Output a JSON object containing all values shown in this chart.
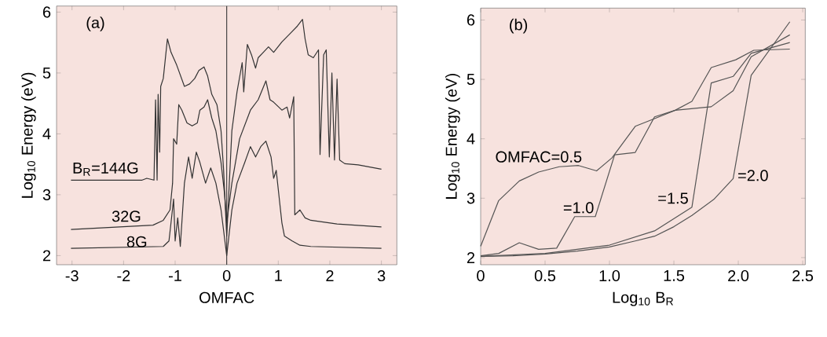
{
  "chart_data": [
    {
      "type": "line",
      "title": "(a)",
      "xlabel": "OMFAC",
      "ylabel": "Log$_{10}$ Energy (eV)",
      "xlim": [
        -3.3,
        3.3
      ],
      "ylim": [
        1.85,
        6.1
      ],
      "xticks": [
        -3,
        -2,
        -1,
        0,
        1,
        2,
        3
      ],
      "yticks": [
        2,
        3,
        4,
        5,
        6
      ],
      "legend": false,
      "grid": false,
      "marker": "none",
      "ref_lines": [
        {
          "axis": "x",
          "value": 0,
          "color": "#333333"
        }
      ],
      "series": [
        {
          "name": "B$_{R}$=144G",
          "color": "#333333",
          "x": [
            -3.02,
            -1.64,
            -1.55,
            -1.41,
            -1.38,
            -1.35,
            -1.33,
            -1.3,
            -1.28,
            -1.23,
            -1.15,
            -1.08,
            -0.97,
            -0.82,
            -0.72,
            -0.62,
            -0.54,
            -0.44,
            -0.37,
            -0.29,
            -0.19,
            -0.11,
            -0.06,
            0.0,
            0.1,
            0.2,
            0.3,
            0.33,
            0.4,
            0.48,
            0.56,
            0.61,
            0.71,
            0.81,
            0.91,
            1.07,
            1.22,
            1.37,
            1.47,
            1.52,
            1.58,
            1.68,
            1.78,
            1.81,
            1.88,
            1.93,
            1.99,
            2.04,
            2.09,
            2.14,
            2.19,
            2.29,
            2.55,
            3.0
          ],
          "values": [
            3.24,
            3.24,
            3.27,
            3.24,
            4.56,
            3.24,
            4.65,
            3.7,
            4.78,
            4.91,
            5.56,
            5.34,
            5.13,
            4.78,
            4.82,
            4.91,
            5.04,
            5.1,
            4.95,
            4.65,
            4.48,
            4.05,
            3.4,
            2.32,
            4.05,
            4.69,
            5.17,
            4.69,
            5.47,
            5.3,
            5.08,
            5.25,
            5.34,
            5.43,
            5.34,
            5.51,
            5.64,
            5.77,
            5.88,
            5.56,
            5.3,
            5.25,
            5.38,
            3.66,
            5.3,
            5.38,
            3.62,
            5.0,
            3.57,
            4.9,
            3.57,
            3.51,
            3.49,
            3.42
          ]
        },
        {
          "name": "32G",
          "color": "#333333",
          "x": [
            -3.02,
            -1.43,
            -1.23,
            -1.1,
            -1.05,
            -1.03,
            -0.97,
            -0.93,
            -0.87,
            -0.77,
            -0.67,
            -0.57,
            -0.52,
            -0.44,
            -0.37,
            -0.29,
            -0.21,
            -0.11,
            -0.04,
            0.0,
            0.1,
            0.25,
            0.46,
            0.61,
            0.76,
            0.84,
            0.91,
            1.07,
            1.17,
            1.22,
            1.3,
            1.32,
            1.42,
            1.52,
            1.63,
            2.14,
            3.0
          ],
          "values": [
            2.43,
            2.5,
            2.58,
            2.75,
            3.19,
            3.92,
            3.83,
            4.48,
            4.39,
            4.18,
            4.13,
            4.18,
            4.39,
            4.44,
            4.56,
            4.26,
            4.05,
            3.53,
            3.0,
            2.54,
            3.19,
            3.92,
            4.39,
            4.56,
            4.87,
            4.56,
            4.52,
            4.39,
            4.44,
            4.26,
            4.61,
            2.67,
            2.75,
            2.62,
            2.58,
            2.52,
            2.47
          ]
        },
        {
          "name": "8G",
          "color": "#333333",
          "x": [
            -3.02,
            -1.23,
            -1.12,
            -1.08,
            -1.03,
            -1.0,
            -0.95,
            -0.9,
            -0.82,
            -0.74,
            -0.67,
            -0.59,
            -0.52,
            -0.41,
            -0.31,
            -0.21,
            -0.11,
            0.0,
            0.1,
            0.2,
            0.35,
            0.46,
            0.56,
            0.66,
            0.76,
            0.86,
            0.91,
            0.96,
            1.02,
            1.07,
            1.12,
            1.27,
            1.42,
            1.63,
            3.0
          ],
          "values": [
            2.12,
            2.15,
            2.24,
            2.54,
            2.93,
            2.24,
            2.62,
            2.15,
            3.19,
            3.62,
            3.27,
            3.7,
            3.53,
            3.19,
            3.44,
            3.19,
            2.75,
            2.0,
            2.75,
            3.19,
            3.53,
            3.79,
            3.62,
            3.79,
            3.88,
            3.62,
            3.27,
            3.4,
            2.93,
            2.54,
            2.32,
            2.24,
            2.17,
            2.15,
            2.12
          ]
        }
      ]
    },
    {
      "type": "line",
      "title": "(b)",
      "xlabel": "Log$_{10}$ B$_{R}$",
      "ylabel": "Log$_{10}$ Energy (eV)",
      "xlim": [
        0,
        2.52
      ],
      "ylim": [
        1.88,
        6.2
      ],
      "xticks": [
        0,
        0.5,
        {
          "value": 1,
          "label": "1.0"
        },
        1.5,
        {
          "value": 2,
          "label": "2.0"
        },
        2.5
      ],
      "yticks": [
        2,
        3,
        4,
        5,
        6
      ],
      "legend": false,
      "grid": false,
      "marker": "none",
      "series": [
        {
          "name": "OMFAC=0.5",
          "color": "#555555",
          "x": [
            0,
            0.14,
            0.3,
            0.45,
            0.61,
            0.76,
            0.9,
            1.02,
            1.2,
            1.35,
            1.51,
            1.64,
            1.79,
            1.98,
            2.12,
            2.4
          ],
          "values": [
            2.19,
            2.96,
            3.29,
            3.44,
            3.53,
            3.55,
            3.46,
            3.68,
            4.21,
            4.34,
            4.48,
            4.63,
            5.2,
            5.33,
            5.49,
            5.51
          ]
        },
        {
          "name": "=1.0",
          "color": "#555555",
          "x": [
            0,
            0.14,
            0.3,
            0.45,
            0.59,
            0.73,
            0.89,
            1.04,
            1.2,
            1.35,
            1.51,
            1.79,
            1.96,
            2.1,
            2.4
          ],
          "values": [
            2.03,
            2.07,
            2.25,
            2.14,
            2.16,
            2.69,
            2.69,
            3.73,
            3.77,
            4.37,
            4.48,
            4.54,
            4.81,
            5.38,
            5.75
          ]
        },
        {
          "name": "=1.5",
          "color": "#555555",
          "x": [
            0,
            0.5,
            1.0,
            1.35,
            1.64,
            1.79,
            1.96,
            2.1,
            2.4
          ],
          "values": [
            2.02,
            2.07,
            2.21,
            2.45,
            2.85,
            4.94,
            5.05,
            5.44,
            5.62
          ]
        },
        {
          "name": "=2.0",
          "color": "#555555",
          "x": [
            0,
            0.25,
            0.5,
            0.75,
            1.0,
            1.2,
            1.35,
            1.5,
            1.64,
            1.81,
            1.96,
            2.1,
            2.4
          ],
          "values": [
            2.02,
            2.03,
            2.06,
            2.11,
            2.18,
            2.28,
            2.36,
            2.52,
            2.71,
            2.98,
            3.33,
            5.07,
            5.97
          ]
        }
      ]
    }
  ]
}
